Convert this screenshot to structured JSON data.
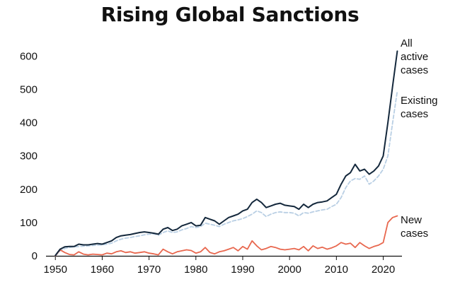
{
  "chart_data": {
    "type": "line",
    "title": "Rising Global Sanctions",
    "xlabel": "",
    "ylabel": "",
    "xlim": [
      1948,
      2024
    ],
    "ylim": [
      0,
      620
    ],
    "x_ticks": [
      1950,
      1960,
      1970,
      1980,
      1990,
      2000,
      2010,
      2020
    ],
    "y_ticks": [
      0,
      100,
      200,
      300,
      400,
      500,
      600
    ],
    "grid": false,
    "legend": "inline-right",
    "colors": {
      "all": "#14283c",
      "existing": "#b9cfe4",
      "new": "#e8674e"
    },
    "x": [
      1950,
      1951,
      1952,
      1953,
      1954,
      1955,
      1956,
      1957,
      1958,
      1959,
      1960,
      1961,
      1962,
      1963,
      1964,
      1965,
      1966,
      1967,
      1968,
      1969,
      1970,
      1971,
      1972,
      1973,
      1974,
      1975,
      1976,
      1977,
      1978,
      1979,
      1980,
      1981,
      1982,
      1983,
      1984,
      1985,
      1986,
      1987,
      1988,
      1989,
      1990,
      1991,
      1992,
      1993,
      1994,
      1995,
      1996,
      1997,
      1998,
      1999,
      2000,
      2001,
      2002,
      2003,
      2004,
      2005,
      2006,
      2007,
      2008,
      2009,
      2010,
      2011,
      2012,
      2013,
      2014,
      2015,
      2016,
      2017,
      2018,
      2019,
      2020,
      2021,
      2022,
      2023
    ],
    "series": [
      {
        "name": "All active cases",
        "key": "all",
        "values": [
          1,
          20,
          27,
          28,
          28,
          35,
          33,
          33,
          35,
          37,
          35,
          40,
          45,
          55,
          60,
          62,
          64,
          67,
          70,
          72,
          70,
          68,
          65,
          80,
          85,
          76,
          80,
          90,
          95,
          100,
          90,
          92,
          115,
          110,
          105,
          95,
          105,
          115,
          120,
          125,
          135,
          140,
          160,
          170,
          160,
          145,
          150,
          155,
          158,
          152,
          150,
          148,
          140,
          155,
          145,
          155,
          160,
          162,
          165,
          175,
          185,
          215,
          240,
          250,
          275,
          255,
          260,
          245,
          255,
          270,
          300,
          400,
          510,
          615
        ]
      },
      {
        "name": "Existing cases",
        "key": "existing",
        "values": [
          0,
          15,
          22,
          25,
          27,
          28,
          29,
          30,
          31,
          32,
          33,
          35,
          38,
          45,
          50,
          53,
          55,
          58,
          60,
          63,
          65,
          66,
          62,
          70,
          75,
          70,
          72,
          78,
          82,
          88,
          85,
          88,
          98,
          95,
          92,
          88,
          95,
          100,
          105,
          108,
          112,
          118,
          125,
          135,
          130,
          118,
          125,
          130,
          132,
          130,
          130,
          128,
          120,
          130,
          128,
          132,
          135,
          138,
          140,
          148,
          155,
          175,
          205,
          225,
          232,
          230,
          240,
          215,
          225,
          240,
          260,
          300,
          400,
          495
        ]
      },
      {
        "name": "New cases",
        "key": "new",
        "values": [
          0,
          18,
          10,
          4,
          3,
          12,
          5,
          3,
          5,
          4,
          3,
          8,
          6,
          12,
          15,
          10,
          12,
          8,
          10,
          12,
          8,
          6,
          3,
          20,
          12,
          6,
          12,
          15,
          18,
          16,
          8,
          12,
          25,
          10,
          6,
          12,
          15,
          20,
          25,
          15,
          28,
          20,
          45,
          30,
          18,
          22,
          28,
          25,
          20,
          18,
          20,
          22,
          18,
          28,
          15,
          30,
          22,
          26,
          20,
          24,
          30,
          40,
          35,
          38,
          25,
          40,
          30,
          22,
          28,
          32,
          40,
          100,
          115,
          120
        ]
      }
    ]
  }
}
